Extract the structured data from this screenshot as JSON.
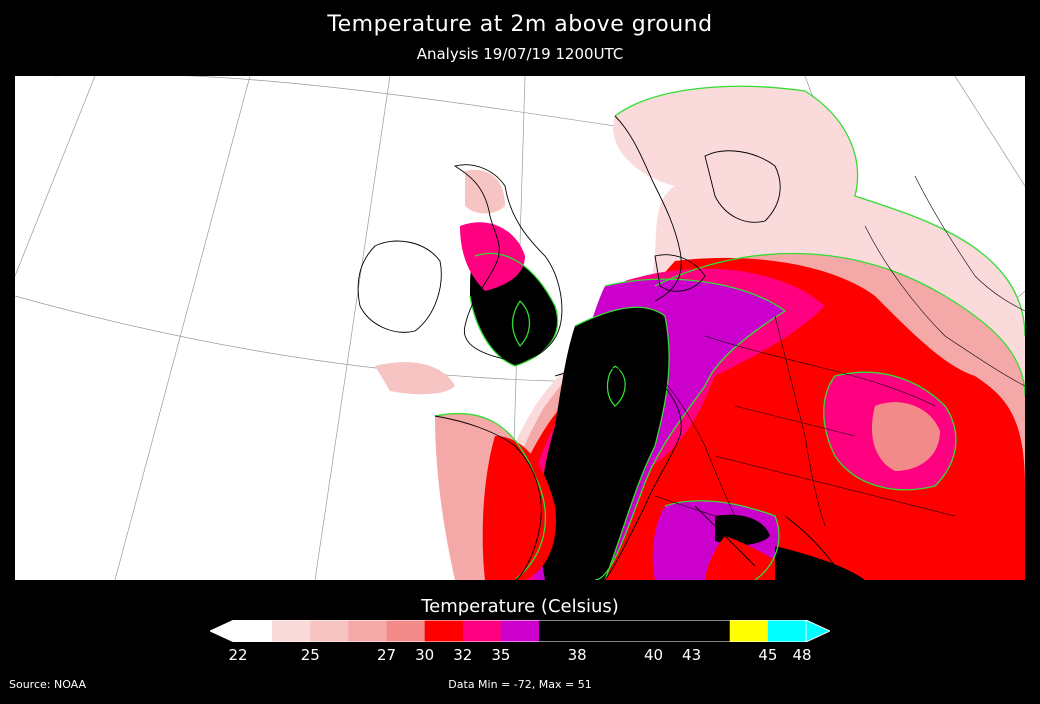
{
  "header": {
    "title": "Temperature at 2m above ground",
    "subtitle": "Analysis 19/07/19 1200UTC"
  },
  "legend": {
    "title": "Temperature (Celsius)",
    "ticks": [
      "22",
      "25",
      "27",
      "30",
      "32",
      "35",
      "38",
      "40",
      "43",
      "45",
      "48"
    ],
    "color_bins": [
      {
        "color": "#ffffff"
      },
      {
        "color": "#fadada"
      },
      {
        "color": "#f7c4c4"
      },
      {
        "color": "#f5a8a8"
      },
      {
        "color": "#f28a8a"
      },
      {
        "color": "#ff0000"
      },
      {
        "color": "#ff0080"
      },
      {
        "color": "#cc00cc"
      },
      {
        "color": "#000000"
      },
      {
        "color": "#000000"
      },
      {
        "color": "#000000"
      },
      {
        "color": "#000000"
      },
      {
        "color": "#000000"
      },
      {
        "color": "#ffff00"
      },
      {
        "color": "#00ffff"
      }
    ],
    "under_color": "#ffffff",
    "over_color": "#00ffff"
  },
  "footer": {
    "source": "Source: NOAA",
    "data_range": "Data Min = -72, Max = 51"
  },
  "map": {
    "region": "Western Europe",
    "colors": {
      "sea": "#ffffff",
      "hot_core": "#000000",
      "contour": "#33dd33",
      "coast": "#000000"
    }
  }
}
